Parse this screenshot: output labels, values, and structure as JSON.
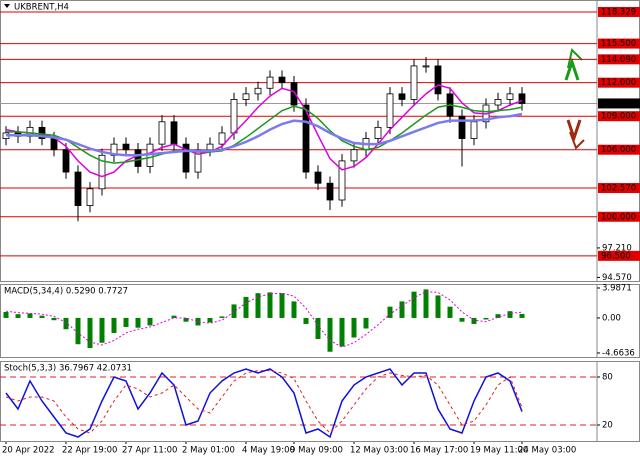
{
  "chart_data": [
    {
      "type": "candlestick",
      "title": "UKBRENT,H4",
      "categories": [
        "20 Apr 2022",
        null,
        null,
        null,
        null,
        "22 Apr 19:00",
        null,
        null,
        null,
        null,
        "27 Apr 11:00",
        null,
        null,
        null,
        null,
        "2 May 01:00",
        null,
        null,
        null,
        null,
        "4 May 19:00",
        null,
        null,
        null,
        "9 May 09:00",
        null,
        null,
        null,
        null,
        "12 May 03:00",
        null,
        null,
        null,
        null,
        "16 May 17:00",
        null,
        null,
        null,
        null,
        "19 May 11:00",
        null,
        null,
        null,
        "24 May 03:00"
      ],
      "open": [
        107.0,
        107.5,
        107.2,
        108,
        107,
        106,
        104,
        101,
        102.5,
        105.5,
        106.5,
        106,
        104.5,
        106.5,
        108.5,
        106.5,
        104,
        106,
        106.5,
        107.5,
        110.5,
        111,
        111.5,
        112.5,
        112,
        110,
        104,
        103,
        101.5,
        105,
        106,
        107,
        108,
        111,
        110.5,
        113.5,
        113.5,
        111,
        109,
        107,
        108.5,
        110,
        110.5,
        111
      ],
      "high": [
        108.1,
        108.1,
        108.6,
        108.6,
        107.6,
        106.6,
        104.6,
        103.1,
        106.1,
        107.1,
        107.1,
        106.6,
        107.1,
        109.1,
        109.1,
        107.1,
        106.6,
        107.1,
        108.1,
        111.1,
        111.6,
        112.1,
        113.1,
        113.1,
        112.6,
        110.6,
        104.6,
        103.6,
        105.6,
        106.6,
        107.6,
        108.6,
        111.6,
        111.6,
        114.1,
        114.3,
        114.1,
        111.6,
        109.6,
        109.1,
        110.6,
        111.1,
        111.6,
        111.6
      ],
      "low": [
        106.4,
        106.6,
        106.6,
        106.4,
        105.4,
        103.4,
        99.6,
        100.4,
        101.9,
        104.9,
        105.4,
        103.9,
        103.9,
        105.9,
        105.9,
        103.4,
        103.4,
        105.4,
        105.9,
        106.9,
        109.9,
        110.4,
        110.9,
        111.4,
        109.4,
        103.4,
        102.4,
        100.6,
        100.9,
        104.4,
        105.4,
        106.4,
        107.4,
        109.9,
        109.9,
        112.9,
        110.4,
        108.4,
        104.5,
        106.4,
        107.9,
        109.4,
        109.9,
        109.5
      ],
      "close": [
        107.5,
        107.2,
        108,
        107,
        106,
        104,
        101,
        102.5,
        105.5,
        106.5,
        106,
        104.5,
        106.5,
        108.5,
        106.5,
        104,
        106,
        106.5,
        107.5,
        110.5,
        111,
        111.5,
        112.5,
        112,
        110,
        104,
        103,
        101.5,
        105,
        106,
        107,
        108,
        111,
        110.5,
        113.5,
        113.5,
        111,
        109,
        107,
        108.5,
        110,
        110.5,
        111,
        110.14
      ],
      "bull_color": "#ffffff",
      "bear_color": "#000000",
      "level_color": "#e00000",
      "current_color": "#000000",
      "lines": [
        {
          "color": "#e000e0",
          "values": [
            107.8,
            107.6,
            107.5,
            107.4,
            107.1,
            106.3,
            105,
            104,
            103.6,
            104,
            105,
            105.5,
            105.7,
            106.2,
            106.5,
            106,
            105.6,
            105.8,
            106.3,
            107.5,
            108.6,
            109.8,
            110.8,
            111.5,
            111.2,
            109.5,
            107.3,
            105.2,
            104.2,
            104.5,
            105.3,
            106.5,
            107.8,
            108.9,
            110,
            111,
            111.8,
            111.5,
            110.2,
            109.3,
            109.2,
            109.5,
            110,
            110.4
          ]
        },
        {
          "color": "#1a9a1a",
          "values": [
            107.6,
            107.6,
            107.5,
            107.4,
            107.3,
            106.9,
            106.2,
            105.5,
            105,
            104.8,
            104.9,
            105.1,
            105.3,
            105.6,
            105.9,
            105.9,
            105.8,
            105.8,
            105.9,
            106.4,
            107.1,
            107.9,
            108.7,
            109.5,
            109.9,
            109.6,
            108.8,
            107.7,
            106.8,
            106.3,
            106,
            106.2,
            106.8,
            107.5,
            108.3,
            109.1,
            109.8,
            110,
            109.8,
            109.5,
            109.4,
            109.5,
            109.6,
            109.8
          ]
        },
        {
          "color": "#7b7bee",
          "values": [
            107.3,
            107.3,
            107.3,
            107.2,
            107.1,
            106.9,
            106.5,
            106.1,
            105.8,
            105.6,
            105.5,
            105.5,
            105.6,
            105.7,
            105.8,
            105.9,
            105.9,
            105.9,
            106,
            106.3,
            106.7,
            107.2,
            107.8,
            108.3,
            108.6,
            108.5,
            108.1,
            107.5,
            107,
            106.6,
            106.5,
            106.5,
            106.8,
            107.2,
            107.6,
            108,
            108.4,
            108.6,
            108.6,
            108.6,
            108.7,
            108.9,
            109,
            109.2
          ]
        }
      ],
      "ylim": [
        94.25,
        119.4
      ],
      "yticks": [
        {
          "value": 118.329,
          "label": "118.329",
          "style": "level"
        },
        {
          "value": 115.5,
          "label": "115.500",
          "style": "level"
        },
        {
          "value": 114.09,
          "label": "114.090",
          "style": "level"
        },
        {
          "value": 112,
          "label": "112.000",
          "style": "level"
        },
        {
          "value": 110.14,
          "label": "110.140",
          "style": "current"
        },
        {
          "value": 109,
          "label": "109.000",
          "style": "level"
        },
        {
          "value": 106,
          "label": "106.000",
          "style": "level"
        },
        {
          "value": 102.57,
          "label": "102.570",
          "style": "level"
        },
        {
          "value": 100,
          "label": "100.000",
          "style": "level"
        },
        {
          "value": 97.21,
          "label": "97.210",
          "style": "plain"
        },
        {
          "value": 96.5,
          "label": "96.500",
          "style": "level"
        },
        {
          "value": 94.57,
          "label": "94.570",
          "style": "plain"
        }
      ]
    },
    {
      "type": "macd",
      "title": "MACD(5,34,4) 0.5290 0.7727",
      "series": [
        {
          "color": "#008000",
          "style": "histogram",
          "values": [
            0.8,
            0.5,
            0.6,
            0.3,
            -0.3,
            -1.5,
            -3.5,
            -4,
            -3.3,
            -2,
            -1.2,
            -1.3,
            -1,
            0,
            0.3,
            -0.5,
            -1,
            -0.6,
            0.2,
            1.8,
            2.8,
            3.3,
            3.4,
            3.3,
            2.2,
            -0.8,
            -2.8,
            -4.5,
            -3.8,
            -2.6,
            -1.4,
            0,
            1.5,
            2.2,
            3.5,
            3.8,
            3,
            1.5,
            -0.5,
            -0.8,
            -0.2,
            0.5,
            0.9,
            0.53
          ]
        },
        {
          "color": "#e000e0",
          "style": "dotted",
          "values": [
            0.9,
            0.7,
            0.6,
            0.5,
            0.2,
            -0.6,
            -2,
            -3.2,
            -3.6,
            -3,
            -2,
            -1.5,
            -1.2,
            -0.6,
            0,
            0,
            -0.5,
            -0.7,
            -0.3,
            0.8,
            2,
            2.8,
            3.2,
            3.3,
            2.9,
            1.3,
            -1,
            -3,
            -3.9,
            -3.3,
            -2.2,
            -0.9,
            0.5,
            1.6,
            2.7,
            3.5,
            3.4,
            2.4,
            0.8,
            -0.3,
            -0.5,
            0.1,
            0.6,
            0.77
          ]
        }
      ],
      "ylim": [
        -5.2,
        4.52
      ],
      "yticks": [
        3.9871,
        {
          "value": 0,
          "label": "0.00"
        },
        -4.6636
      ]
    },
    {
      "type": "stochastic",
      "title": "Stoch(5,3,3) 36.7967 42.0731",
      "series": [
        {
          "color": "#1010e0",
          "style": "solid",
          "values": [
            60,
            40,
            75,
            50,
            30,
            10,
            5,
            15,
            50,
            80,
            75,
            40,
            60,
            85,
            70,
            20,
            25,
            60,
            75,
            85,
            90,
            85,
            90,
            80,
            60,
            10,
            15,
            5,
            50,
            70,
            80,
            85,
            90,
            70,
            85,
            85,
            40,
            15,
            10,
            50,
            80,
            85,
            75,
            36.8
          ]
        },
        {
          "color": "#e02020",
          "style": "dashed",
          "values": [
            55,
            50,
            55,
            55,
            50,
            30,
            15,
            10,
            25,
            50,
            70,
            65,
            55,
            60,
            70,
            55,
            40,
            35,
            55,
            75,
            85,
            88,
            88,
            85,
            78,
            50,
            25,
            10,
            25,
            45,
            65,
            80,
            85,
            82,
            80,
            82,
            70,
            45,
            20,
            25,
            45,
            70,
            80,
            42.1
          ]
        }
      ],
      "ylim": [
        0,
        100
      ],
      "yticks": [
        80,
        20
      ],
      "grid": "dashed",
      "grid_color": "#e02020"
    }
  ]
}
